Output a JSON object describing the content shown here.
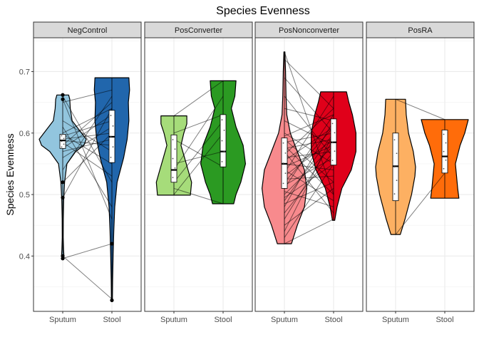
{
  "chart_data": {
    "type": "violin",
    "title": "Species Evenness",
    "ylabel": "Species Evenness",
    "xlabel": "",
    "ylim": [
      0.31,
      0.755
    ],
    "yticks": [
      0.4,
      0.5,
      0.6,
      0.7
    ],
    "ytick_labels": [
      "0.4",
      "0.5",
      "0.6",
      "0.7"
    ],
    "grid": true,
    "categories": [
      "Sputum",
      "Stool"
    ],
    "panels": [
      {
        "name": "NegControl",
        "colors": [
          "#92c5de",
          "#2166ac"
        ],
        "groups": [
          {
            "category": "Sputum",
            "range": [
              0.395,
              0.662
            ],
            "box": {
              "q1": 0.575,
              "median": 0.588,
              "q3": 0.598
            },
            "violin": [
              [
                0.395,
                0.005
              ],
              [
                0.4,
                0.05
              ],
              [
                0.41,
                0.035
              ],
              [
                0.43,
                0.02
              ],
              [
                0.46,
                0.025
              ],
              [
                0.49,
                0.04
              ],
              [
                0.52,
                0.08
              ],
              [
                0.55,
                0.18
              ],
              [
                0.57,
                0.55
              ],
              [
                0.58,
                0.9
              ],
              [
                0.59,
                1.0
              ],
              [
                0.6,
                0.8
              ],
              [
                0.62,
                0.4
              ],
              [
                0.64,
                0.32
              ],
              [
                0.655,
                0.3
              ],
              [
                0.662,
                0.25
              ]
            ],
            "outliers": [
              0.662,
              0.655,
              0.52,
              0.495,
              0.4,
              0.396
            ]
          },
          {
            "category": "Stool",
            "range": [
              0.328,
              0.69
            ],
            "box": {
              "q1": 0.552,
              "median": 0.594,
              "q3": 0.637
            },
            "violin": [
              [
                0.328,
                0.02
              ],
              [
                0.36,
                0.03
              ],
              [
                0.4,
                0.05
              ],
              [
                0.44,
                0.08
              ],
              [
                0.48,
                0.12
              ],
              [
                0.52,
                0.22
              ],
              [
                0.56,
                0.5
              ],
              [
                0.59,
                0.65
              ],
              [
                0.62,
                0.72
              ],
              [
                0.65,
                0.7
              ],
              [
                0.67,
                0.75
              ],
              [
                0.69,
                0.72
              ]
            ],
            "outliers": [
              0.42,
              0.328
            ]
          }
        ],
        "pairs": [
          [
            0.66,
            0.52
          ],
          [
            0.655,
            0.46
          ],
          [
            0.65,
            0.67
          ],
          [
            0.62,
            0.57
          ],
          [
            0.61,
            0.48
          ],
          [
            0.6,
            0.64
          ],
          [
            0.598,
            0.55
          ],
          [
            0.595,
            0.62
          ],
          [
            0.59,
            0.6
          ],
          [
            0.588,
            0.58
          ],
          [
            0.585,
            0.53
          ],
          [
            0.58,
            0.65
          ],
          [
            0.575,
            0.63
          ],
          [
            0.57,
            0.59
          ],
          [
            0.56,
            0.61
          ],
          [
            0.54,
            0.66
          ],
          [
            0.52,
            0.6
          ],
          [
            0.495,
            0.64
          ],
          [
            0.4,
            0.33
          ],
          [
            0.396,
            0.42
          ]
        ]
      },
      {
        "name": "PosConverter",
        "colors": [
          "#a6dc7a",
          "#2b9a22"
        ],
        "groups": [
          {
            "category": "Sputum",
            "range": [
              0.499,
              0.628
            ],
            "box": {
              "q1": 0.52,
              "median": 0.54,
              "q3": 0.597
            },
            "violin": [
              [
                0.499,
                0.7
              ],
              [
                0.52,
                0.75
              ],
              [
                0.54,
                0.6
              ],
              [
                0.56,
                0.45
              ],
              [
                0.58,
                0.3
              ],
              [
                0.6,
                0.42
              ],
              [
                0.615,
                0.55
              ],
              [
                0.628,
                0.55
              ]
            ],
            "outliers": []
          },
          {
            "category": "Stool",
            "range": [
              0.485,
              0.685
            ],
            "box": {
              "q1": 0.545,
              "median": 0.57,
              "q3": 0.63
            },
            "violin": [
              [
                0.485,
                0.45
              ],
              [
                0.5,
                0.55
              ],
              [
                0.52,
                0.75
              ],
              [
                0.55,
                0.95
              ],
              [
                0.58,
                0.85
              ],
              [
                0.61,
                0.55
              ],
              [
                0.64,
                0.35
              ],
              [
                0.66,
                0.5
              ],
              [
                0.685,
                0.55
              ]
            ],
            "outliers": []
          }
        ],
        "pairs": [
          [
            0.628,
            0.685
          ],
          [
            0.6,
            0.63
          ],
          [
            0.59,
            0.545
          ],
          [
            0.55,
            0.57
          ],
          [
            0.54,
            0.66
          ],
          [
            0.52,
            0.62
          ],
          [
            0.51,
            0.485
          ],
          [
            0.5,
            0.6
          ]
        ]
      },
      {
        "name": "PosNonconverter",
        "colors": [
          "#f88a8d",
          "#e0001a"
        ],
        "groups": [
          {
            "category": "Sputum",
            "range": [
              0.42,
              0.732
            ],
            "box": {
              "q1": 0.51,
              "median": 0.55,
              "q3": 0.592
            },
            "violin": [
              [
                0.42,
                0.3
              ],
              [
                0.45,
                0.55
              ],
              [
                0.48,
                0.85
              ],
              [
                0.51,
                0.95
              ],
              [
                0.54,
                0.85
              ],
              [
                0.57,
                0.55
              ],
              [
                0.6,
                0.25
              ],
              [
                0.63,
                0.1
              ],
              [
                0.66,
                0.07
              ],
              [
                0.7,
                0.05
              ],
              [
                0.732,
                0.02
              ]
            ],
            "outliers": []
          },
          {
            "category": "Stool",
            "range": [
              0.458,
              0.667
            ],
            "box": {
              "q1": 0.548,
              "median": 0.585,
              "q3": 0.623
            },
            "violin": [
              [
                0.458,
                0.05
              ],
              [
                0.48,
                0.15
              ],
              [
                0.51,
                0.35
              ],
              [
                0.54,
                0.75
              ],
              [
                0.57,
                0.95
              ],
              [
                0.6,
                0.95
              ],
              [
                0.63,
                0.8
              ],
              [
                0.65,
                0.65
              ],
              [
                0.667,
                0.55
              ]
            ],
            "outliers": []
          }
        ],
        "pairs": [
          [
            0.732,
            0.5
          ],
          [
            0.72,
            0.64
          ],
          [
            0.69,
            0.6
          ],
          [
            0.66,
            0.56
          ],
          [
            0.64,
            0.62
          ],
          [
            0.62,
            0.58
          ],
          [
            0.6,
            0.55
          ],
          [
            0.595,
            0.63
          ],
          [
            0.59,
            0.52
          ],
          [
            0.585,
            0.6
          ],
          [
            0.58,
            0.5
          ],
          [
            0.575,
            0.59
          ],
          [
            0.57,
            0.47
          ],
          [
            0.565,
            0.64
          ],
          [
            0.56,
            0.57
          ],
          [
            0.555,
            0.61
          ],
          [
            0.55,
            0.54
          ],
          [
            0.545,
            0.58
          ],
          [
            0.54,
            0.49
          ],
          [
            0.535,
            0.66
          ],
          [
            0.53,
            0.59
          ],
          [
            0.525,
            0.53
          ],
          [
            0.52,
            0.61
          ],
          [
            0.515,
            0.56
          ],
          [
            0.51,
            0.63
          ],
          [
            0.505,
            0.48
          ],
          [
            0.5,
            0.58
          ],
          [
            0.495,
            0.55
          ],
          [
            0.49,
            0.6
          ],
          [
            0.485,
            0.52
          ],
          [
            0.48,
            0.62
          ],
          [
            0.47,
            0.57
          ],
          [
            0.46,
            0.59
          ],
          [
            0.45,
            0.51
          ],
          [
            0.44,
            0.6
          ],
          [
            0.43,
            0.55
          ],
          [
            0.42,
            0.46
          ]
        ]
      },
      {
        "name": "PosRA",
        "colors": [
          "#fdb062",
          "#ff6c0a"
        ],
        "groups": [
          {
            "category": "Sputum",
            "range": [
              0.435,
              0.655
            ],
            "box": {
              "q1": 0.49,
              "median": 0.546,
              "q3": 0.6
            },
            "violin": [
              [
                0.435,
                0.2
              ],
              [
                0.46,
                0.4
              ],
              [
                0.5,
                0.68
              ],
              [
                0.53,
                0.82
              ],
              [
                0.545,
                0.85
              ],
              [
                0.57,
                0.75
              ],
              [
                0.6,
                0.55
              ],
              [
                0.63,
                0.45
              ],
              [
                0.655,
                0.42
              ]
            ],
            "outliers": []
          },
          {
            "category": "Stool",
            "range": [
              0.494,
              0.622
            ],
            "box": {
              "q1": 0.535,
              "median": 0.562,
              "q3": 0.605
            },
            "violin": [
              [
                0.494,
                0.6
              ],
              [
                0.51,
                0.55
              ],
              [
                0.53,
                0.5
              ],
              [
                0.55,
                0.45
              ],
              [
                0.58,
                0.65
              ],
              [
                0.6,
                0.85
              ],
              [
                0.622,
                1.0
              ]
            ],
            "outliers": []
          }
        ],
        "pairs": [
          [
            0.655,
            0.622
          ],
          [
            0.435,
            0.535
          ]
        ]
      }
    ]
  }
}
